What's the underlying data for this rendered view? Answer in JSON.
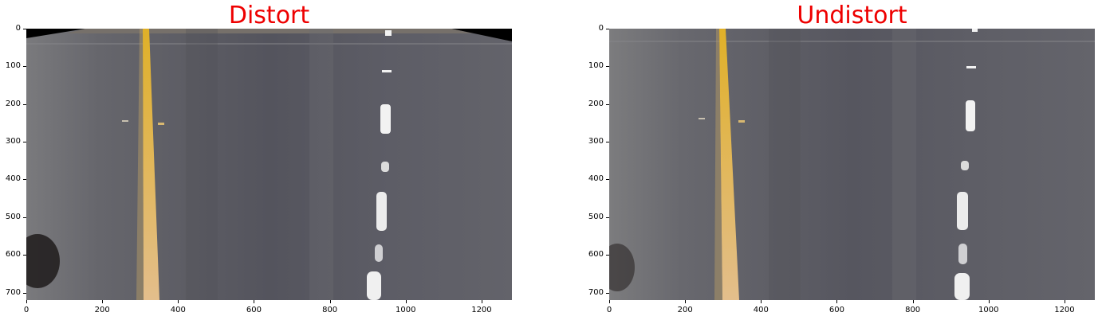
{
  "figure": {
    "title_color": "#ee0000",
    "panels": [
      {
        "id": "distort",
        "title": "Distort",
        "x_ticks": [
          "0",
          "200",
          "400",
          "600",
          "800",
          "1000",
          "1200"
        ],
        "y_ticks": [
          "0",
          "100",
          "200",
          "300",
          "400",
          "500",
          "600",
          "700"
        ]
      },
      {
        "id": "undistort",
        "title": "Undistort",
        "x_ticks": [
          "0",
          "200",
          "400",
          "600",
          "800",
          "1000",
          "1200"
        ],
        "y_ticks": [
          "0",
          "100",
          "200",
          "300",
          "400",
          "500",
          "600",
          "700"
        ]
      }
    ]
  },
  "colors": {
    "road": "#5a5a63",
    "yellow_line": "#d8a738",
    "white_dash": "#f2f2f2",
    "border": "#000000"
  }
}
